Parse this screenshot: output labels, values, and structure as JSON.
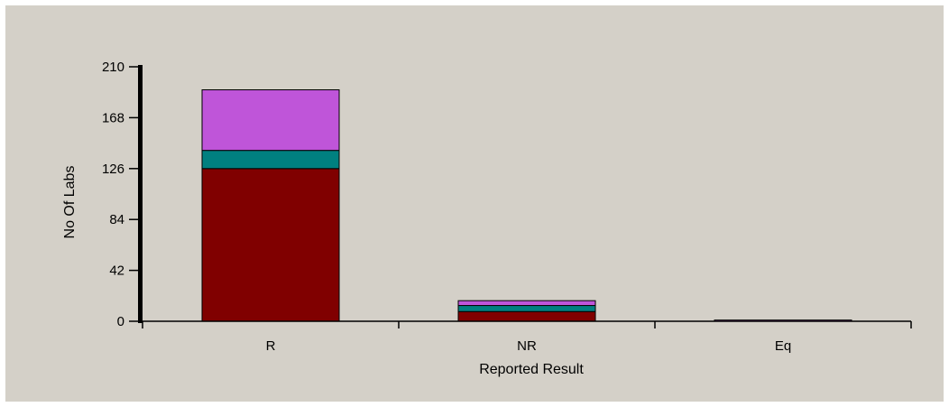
{
  "chart_data": {
    "type": "bar",
    "stacked": true,
    "title": "",
    "xlabel": "Reported Result",
    "ylabel": "No Of Labs",
    "categories": [
      "R",
      "NR",
      "Eq"
    ],
    "yticks": [
      0,
      42,
      84,
      126,
      168,
      210
    ],
    "ylim": [
      0,
      210
    ],
    "grid": false,
    "legend": "none",
    "series": [
      {
        "color": "#800000",
        "values": [
          126,
          8,
          0
        ]
      },
      {
        "color": "#008080",
        "values": [
          15,
          5,
          0
        ]
      },
      {
        "color": "#bf55d9",
        "values": [
          50,
          4,
          1
        ]
      }
    ]
  }
}
